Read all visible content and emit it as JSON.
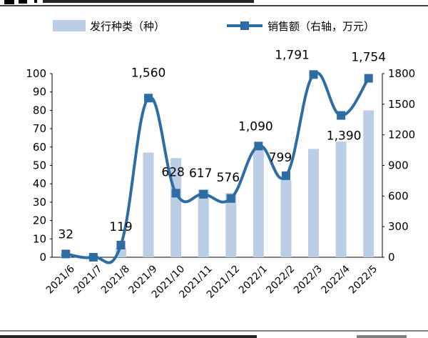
{
  "chart_data": {
    "type": "bar+line",
    "categories": [
      "2021/6",
      "2021/7",
      "2021/8",
      "2021/9",
      "2021/10",
      "2021/11",
      "2021/12",
      "2022/1",
      "2022/2",
      "2022/3",
      "2022/4",
      "2022/5"
    ],
    "series": [
      {
        "name": "发行种类（种）",
        "type": "bar",
        "axis": "left",
        "values": [
          2,
          1,
          5,
          57,
          54,
          37,
          35,
          60,
          42,
          59,
          63,
          80
        ],
        "color": "#bccde6"
      },
      {
        "name": "销售额（右轴，万元）",
        "type": "line",
        "axis": "right",
        "values": [
          32,
          0,
          119,
          1560,
          628,
          617,
          576,
          1090,
          799,
          1791,
          1390,
          1754
        ],
        "labels": [
          "32",
          "",
          "119",
          "1,560",
          "628",
          "617",
          "576",
          "1,090",
          "799",
          "1,791",
          "1,390",
          "1,754"
        ],
        "color": "#2e6ca4"
      }
    ],
    "y_left": {
      "ylim": [
        0,
        100
      ],
      "ticks": [
        "0",
        "10",
        "20",
        "30",
        "40",
        "50",
        "60",
        "70",
        "80",
        "90",
        "100"
      ]
    },
    "y_right": {
      "ylim": [
        0,
        1800
      ],
      "ticks": [
        "0",
        "300",
        "600",
        "900",
        "1200",
        "1500",
        "1800"
      ]
    },
    "legend_position": "top",
    "grid": false
  }
}
